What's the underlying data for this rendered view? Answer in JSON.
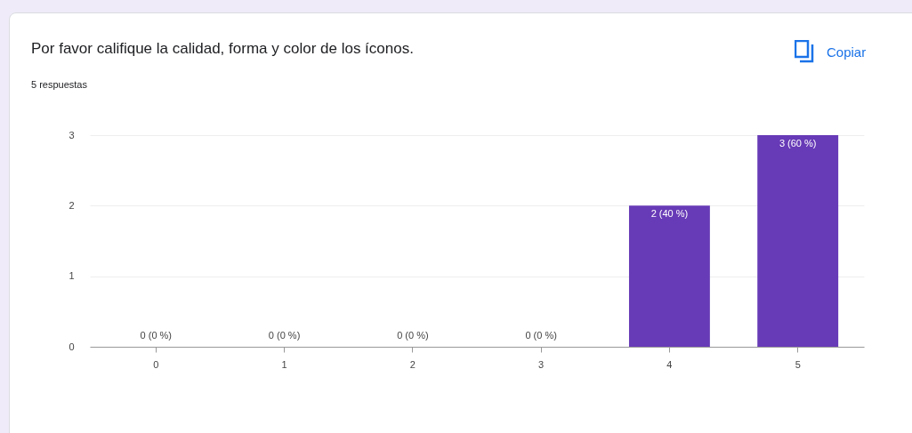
{
  "chart_data": {
    "type": "bar",
    "title": "Por favor califique la calidad, forma y color de los íconos.",
    "subtitle": "5 respuestas",
    "annotations": [
      "Copiar"
    ],
    "categories": [
      "0",
      "1",
      "2",
      "3",
      "4",
      "5"
    ],
    "values": [
      0,
      0,
      0,
      0,
      2,
      3
    ],
    "value_labels": [
      "0 (0 %)",
      "0 (0 %)",
      "0 (0 %)",
      "0 (0 %)",
      "2 (40 %)",
      "3 (60 %)"
    ],
    "color": "#673ab7",
    "ylim": [
      0,
      3
    ],
    "yticks": [
      0,
      1,
      2,
      3
    ],
    "grid": "y"
  }
}
